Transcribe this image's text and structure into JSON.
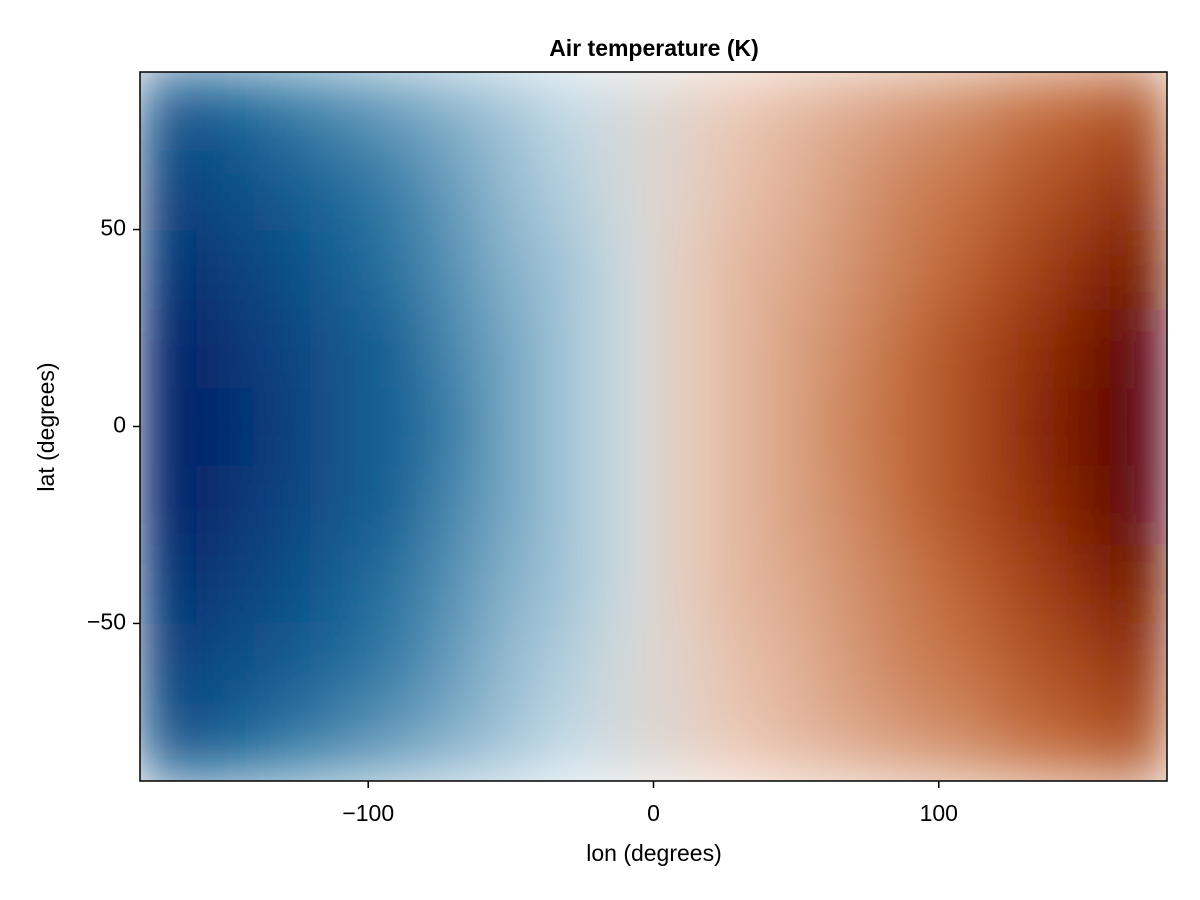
{
  "chart_data": {
    "type": "heatmap",
    "title": "Air temperature (K)",
    "xlabel": "lon (degrees)",
    "ylabel": "lat (degrees)",
    "x": [
      -170,
      -150,
      -130,
      -110,
      -90,
      -70,
      -50,
      -30,
      -10,
      10,
      30,
      50,
      70,
      90,
      110,
      130,
      150,
      170
    ],
    "y": [
      -80,
      -60,
      -40,
      -20,
      0,
      20,
      40,
      60,
      80
    ],
    "z": [
      [
        255,
        257,
        260,
        262,
        264,
        266,
        268,
        270,
        272,
        274,
        276,
        278,
        280,
        282,
        284,
        287,
        289,
        291
      ],
      [
        251,
        254,
        256,
        259,
        261,
        264,
        267,
        269,
        272,
        274,
        277,
        279,
        282,
        285,
        287,
        290,
        292,
        295
      ],
      [
        248,
        251,
        254,
        257,
        260,
        263,
        266,
        268,
        271,
        275,
        278,
        280,
        283,
        286,
        289,
        292,
        295,
        298
      ],
      [
        245,
        249,
        252,
        255,
        258,
        262,
        265,
        268,
        271,
        275,
        278,
        281,
        284,
        288,
        291,
        294,
        297,
        301
      ],
      [
        245,
        248,
        251,
        255,
        258,
        261,
        265,
        268,
        271,
        275,
        278,
        281,
        285,
        288,
        291,
        295,
        298,
        301
      ],
      [
        245,
        249,
        252,
        255,
        258,
        262,
        265,
        268,
        271,
        275,
        278,
        281,
        284,
        288,
        291,
        294,
        297,
        301
      ],
      [
        248,
        251,
        254,
        257,
        260,
        263,
        266,
        268,
        271,
        275,
        278,
        280,
        283,
        286,
        289,
        292,
        295,
        298
      ],
      [
        251,
        254,
        256,
        259,
        261,
        264,
        267,
        269,
        272,
        274,
        277,
        279,
        282,
        285,
        287,
        290,
        292,
        295
      ],
      [
        255,
        257,
        260,
        262,
        264,
        266,
        268,
        270,
        272,
        274,
        276,
        278,
        280,
        282,
        284,
        287,
        289,
        291
      ]
    ],
    "xlim": [
      -180,
      180
    ],
    "ylim": [
      -90,
      90
    ],
    "xticks": [
      {
        "value": -100,
        "label": "−100"
      },
      0,
      100
    ],
    "yticks": [
      {
        "value": -50,
        "label": "−50"
      },
      0,
      50
    ],
    "clim": [
      245,
      301
    ],
    "colormap": [
      {
        "at": 0,
        "color": "#001c66"
      },
      {
        "at": 0.25,
        "color": "#1a6a9a"
      },
      {
        "at": 0.45,
        "color": "#c5dbe6"
      },
      {
        "at": 0.5,
        "color": "#dbd6d2"
      },
      {
        "at": 0.55,
        "color": "#ebc9b6"
      },
      {
        "at": 0.78,
        "color": "#bf6431"
      },
      {
        "at": 0.9,
        "color": "#8c2a06"
      },
      {
        "at": 1,
        "color": "#590007"
      }
    ]
  }
}
